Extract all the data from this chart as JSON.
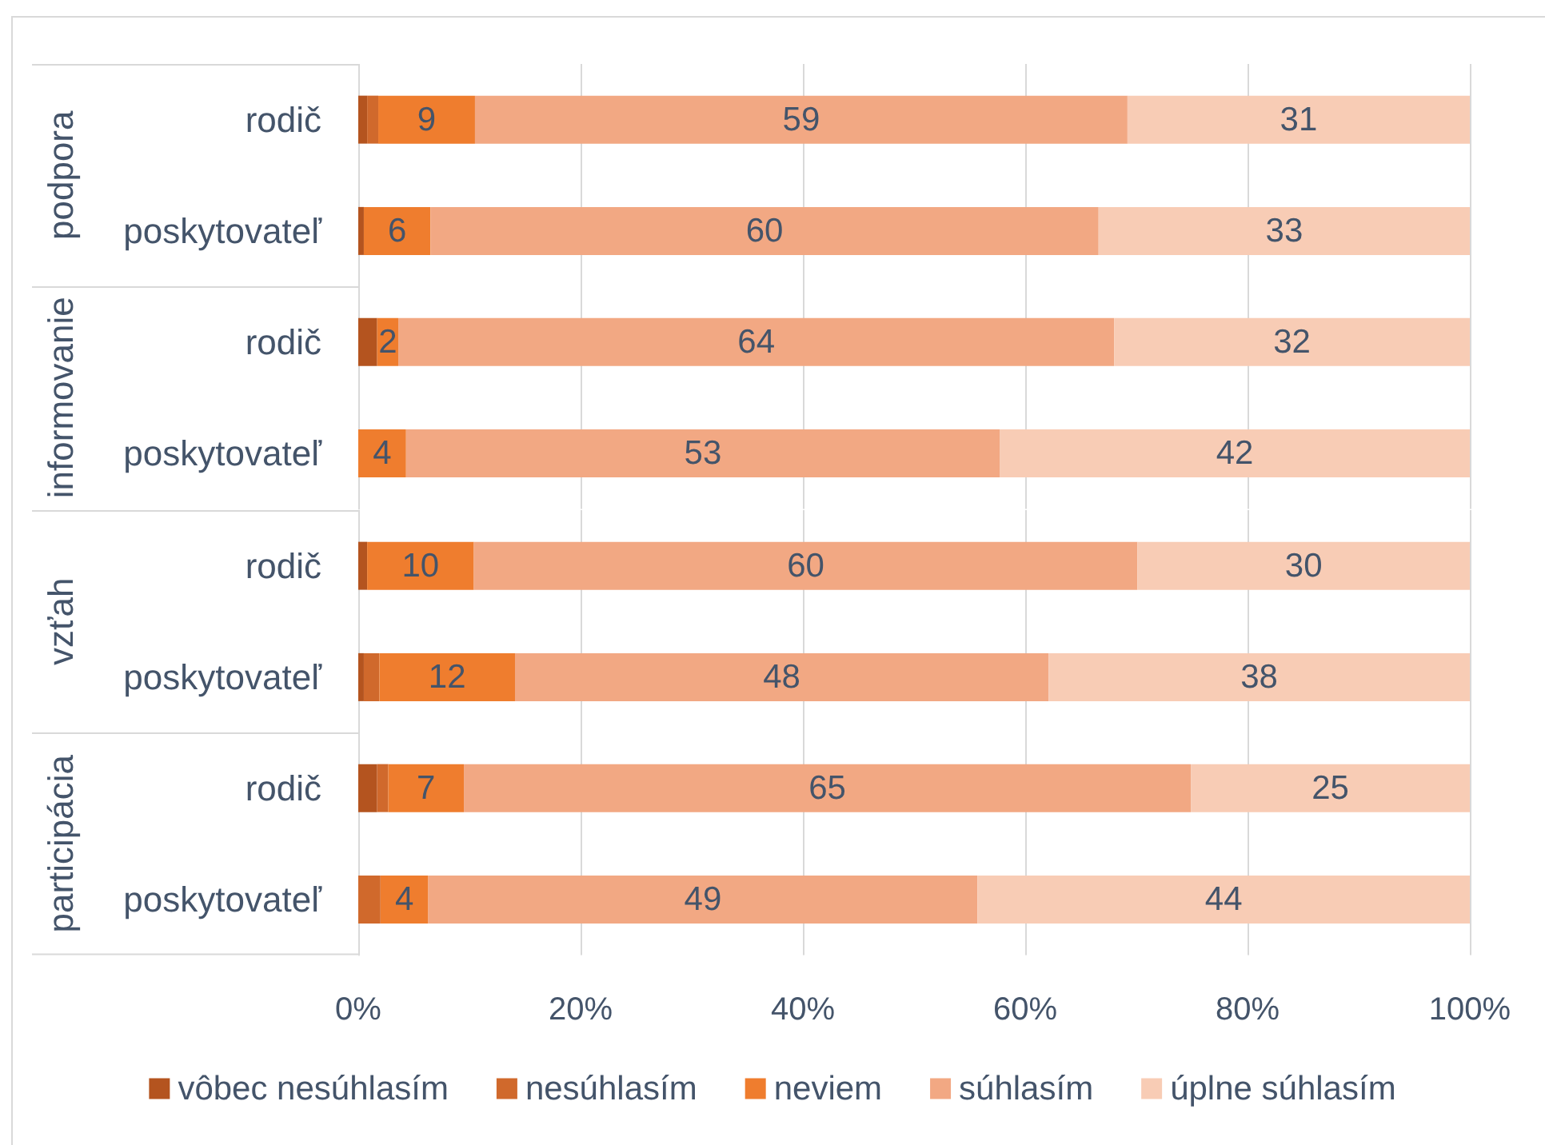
{
  "chart_data": [
    {
      "type": "bar",
      "orientation": "horizontal",
      "stacked": true,
      "ylabel": "podpora",
      "categories": [
        "rodič",
        "poskytovateľ"
      ],
      "series": [
        {
          "color": "#b4541f",
          "values": [
            0.8,
            0.5
          ],
          "value_labels": [
            null,
            null
          ]
        },
        {
          "color": "#d0692c",
          "values": [
            1.0,
            null
          ],
          "value_labels": [
            null,
            null
          ]
        },
        {
          "color": "#ef7d2e",
          "values": [
            8.7,
            6.0
          ],
          "value_labels": [
            "9",
            "6"
          ]
        },
        {
          "color": "#f2a883",
          "values": [
            58.7,
            60.1
          ],
          "value_labels": [
            "59",
            "60"
          ]
        },
        {
          "color": "#f8ccb5",
          "values": [
            30.8,
            33.4
          ],
          "value_labels": [
            "31",
            "33"
          ]
        }
      ],
      "xlim": [
        0,
        100
      ],
      "xticks": [
        0,
        20,
        40,
        60,
        80,
        100
      ],
      "grid": "x",
      "tick_labels": "y"
    },
    {
      "type": "bar",
      "orientation": "horizontal",
      "stacked": true,
      "ylabel": "informovanie",
      "categories": [
        "rodič",
        "poskytovateľ"
      ],
      "series": [
        {
          "color": "#b4541f",
          "values": [
            1.7,
            null
          ],
          "value_labels": [
            null,
            null
          ]
        },
        {
          "color": "#d0692c",
          "values": [
            null,
            null
          ],
          "value_labels": [
            null,
            null
          ]
        },
        {
          "color": "#ef7d2e",
          "values": [
            1.9,
            4.3
          ],
          "value_labels": [
            "2",
            "4"
          ]
        },
        {
          "color": "#f2a883",
          "values": [
            64.4,
            53.4
          ],
          "value_labels": [
            "64",
            "53"
          ]
        },
        {
          "color": "#f8ccb5",
          "values": [
            32.0,
            42.3
          ],
          "value_labels": [
            "32",
            "42"
          ]
        }
      ],
      "xlim": [
        0,
        100
      ],
      "xticks": [
        0,
        20,
        40,
        60,
        80,
        100
      ],
      "grid": "x",
      "tick_labels": "y"
    },
    {
      "type": "bar",
      "orientation": "horizontal",
      "stacked": true,
      "ylabel": "vzťah",
      "categories": [
        "rodič",
        "poskytovateľ"
      ],
      "series": [
        {
          "color": "#b4541f",
          "values": [
            0.8,
            0.5
          ],
          "value_labels": [
            null,
            null
          ]
        },
        {
          "color": "#d0692c",
          "values": [
            null,
            1.4
          ],
          "value_labels": [
            null,
            null
          ]
        },
        {
          "color": "#ef7d2e",
          "values": [
            9.6,
            12.2
          ],
          "value_labels": [
            "10",
            "12"
          ]
        },
        {
          "color": "#f2a883",
          "values": [
            59.7,
            48.0
          ],
          "value_labels": [
            "60",
            "48"
          ]
        },
        {
          "color": "#f8ccb5",
          "values": [
            29.9,
            37.9
          ],
          "value_labels": [
            "30",
            "38"
          ]
        }
      ],
      "xlim": [
        0,
        100
      ],
      "xticks": [
        0,
        20,
        40,
        60,
        80,
        100
      ],
      "grid": "x",
      "tick_labels": "y"
    },
    {
      "type": "bar",
      "orientation": "horizontal",
      "stacked": true,
      "ylabel": "participácia",
      "categories": [
        "rodič",
        "poskytovateľ"
      ],
      "series": [
        {
          "name": "vôbec nesúhlasím",
          "color": "#b4541f",
          "values": [
            1.7,
            null
          ],
          "value_labels": [
            null,
            null
          ]
        },
        {
          "name": "nesúhlasím",
          "color": "#d0692c",
          "values": [
            1.0,
            2.0
          ],
          "value_labels": [
            null,
            null
          ]
        },
        {
          "name": "neviem",
          "color": "#ef7d2e",
          "values": [
            6.8,
            4.3
          ],
          "value_labels": [
            "7",
            "4"
          ]
        },
        {
          "name": "súhlasím",
          "color": "#f2a883",
          "values": [
            65.4,
            49.4
          ],
          "value_labels": [
            "65",
            "49"
          ]
        },
        {
          "name": "úplne súhlasím",
          "color": "#f8ccb5",
          "values": [
            25.1,
            44.3
          ],
          "value_labels": [
            "25",
            "44"
          ]
        }
      ],
      "xlim": [
        0,
        100
      ],
      "xticks": [
        {
          "value": 0,
          "label": "0%"
        },
        {
          "value": 20,
          "label": "20%"
        },
        {
          "value": 40,
          "label": "40%"
        },
        {
          "value": 60,
          "label": "60%"
        },
        {
          "value": 80,
          "label": "80%"
        },
        {
          "value": 100,
          "label": "100%"
        }
      ],
      "grid": "x",
      "legend": "bottom"
    }
  ]
}
